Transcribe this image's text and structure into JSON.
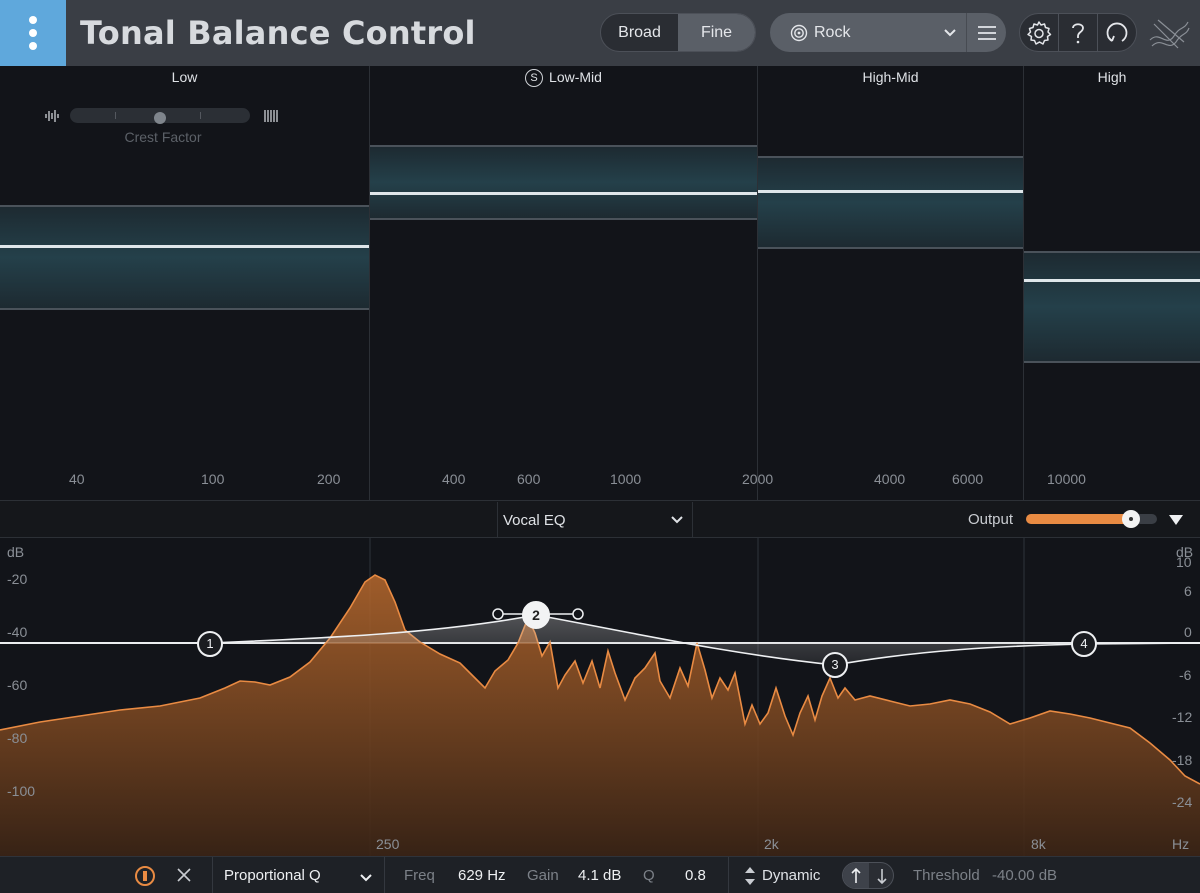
{
  "app": {
    "title": "Tonal Balance Control"
  },
  "header": {
    "mode_options": [
      "Broad",
      "Fine"
    ],
    "mode_selected": "Fine",
    "preset": "Rock",
    "icons": [
      "settings-icon",
      "help-icon",
      "refresh-icon",
      "izotope-logo"
    ]
  },
  "bands": [
    {
      "label": "Low",
      "solo": false
    },
    {
      "label": "Low-Mid",
      "solo": true,
      "solo_glyph": "S"
    },
    {
      "label": "High-Mid",
      "solo": false
    },
    {
      "label": "High",
      "solo": false
    }
  ],
  "freq_ticks": [
    "40",
    "100",
    "200",
    "400",
    "600",
    "1000",
    "2000",
    "4000",
    "6000",
    "10000"
  ],
  "crest_factor": {
    "label": "Crest Factor",
    "value": 0.5
  },
  "eq": {
    "module": "Vocal EQ",
    "output_label": "Output",
    "output_level": 0.8,
    "left_axis_unit": "dB",
    "left_axis": [
      "-20",
      "-40",
      "-60",
      "-80",
      "-100"
    ],
    "right_axis_unit": "dB",
    "right_axis": [
      "10",
      "6",
      "0",
      "-6",
      "-12",
      "-18",
      "-24"
    ],
    "freq_labels": [
      "250",
      "2k",
      "8k"
    ],
    "freq_unit": "Hz",
    "nodes": [
      "1",
      "2",
      "3",
      "4"
    ]
  },
  "bottom": {
    "filter_type": "Proportional Q",
    "freq_label": "Freq",
    "freq_value": "629 Hz",
    "gain_label": "Gain",
    "gain_value": "4.1 dB",
    "q_label": "Q",
    "q_value": "0.8",
    "dynamic_label": "Dynamic",
    "threshold_label": "Threshold",
    "threshold_value": "-40.00 dB"
  },
  "colors": {
    "accent": "#e98b43",
    "logo": "#5fa8dc",
    "spectrum": "#d9803e",
    "target": "#24404a"
  }
}
